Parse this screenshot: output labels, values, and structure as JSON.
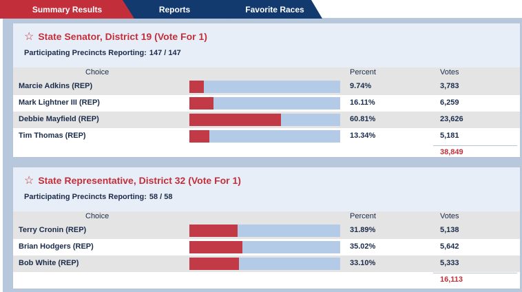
{
  "tabs": [
    {
      "label": "Summary Results",
      "active": true
    },
    {
      "label": "Reports",
      "active": false
    },
    {
      "label": "Favorite Races",
      "active": false
    }
  ],
  "columns": {
    "choice": "Choice",
    "percent": "Percent",
    "votes": "Votes"
  },
  "races": [
    {
      "title": "State Senator, District 19 (Vote For 1)",
      "precincts_label": "Participating Precincts Reporting:",
      "precincts_value": "147 / 147",
      "candidates": [
        {
          "name": "Marcie Adkins (REP)",
          "percent": "9.74%",
          "share": 9.74,
          "votes": "3,783"
        },
        {
          "name": "Mark Lightner III (REP)",
          "percent": "16.11%",
          "share": 16.11,
          "votes": "6,259"
        },
        {
          "name": "Debbie Mayfield (REP)",
          "percent": "60.81%",
          "share": 60.81,
          "votes": "23,626"
        },
        {
          "name": "Tim Thomas (REP)",
          "percent": "13.34%",
          "share": 13.34,
          "votes": "5,181"
        }
      ],
      "total": "38,849"
    },
    {
      "title": "State Representative, District 32 (Vote For 1)",
      "precincts_label": "Participating Precincts Reporting:",
      "precincts_value": "58 / 58",
      "candidates": [
        {
          "name": "Terry Cronin (REP)",
          "percent": "31.89%",
          "share": 31.89,
          "votes": "5,138"
        },
        {
          "name": "Brian Hodgers (REP)",
          "percent": "35.02%",
          "share": 35.02,
          "votes": "5,642"
        },
        {
          "name": "Bob White (REP)",
          "percent": "33.10%",
          "share": 33.1,
          "votes": "5,333"
        }
      ],
      "total": "16,113"
    }
  ],
  "colors": {
    "accent": "#c22f3a",
    "tab_inactive": "#123a6e",
    "bar_bg": "#b4cbe8",
    "bar_fill": "#c33a47"
  },
  "icons": {
    "favorite": "star-outline-icon"
  }
}
